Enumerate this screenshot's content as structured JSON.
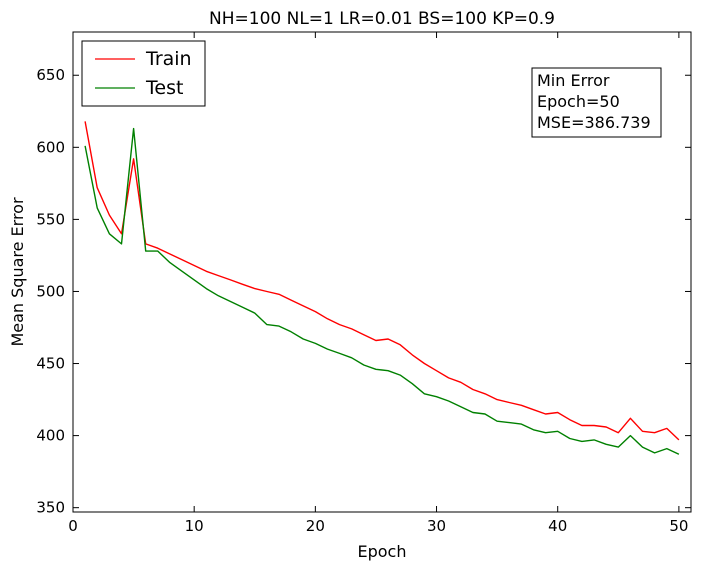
{
  "chart_data": {
    "type": "line",
    "title": "NH=100 NL=1 LR=0.01 BS=100 KP=0.9",
    "xlabel": "Epoch",
    "ylabel": "Mean Square Error",
    "xlim": [
      0,
      51
    ],
    "ylim": [
      347,
      680
    ],
    "xticks": [
      0,
      10,
      20,
      30,
      40,
      50
    ],
    "yticks": [
      350,
      400,
      450,
      500,
      550,
      600,
      650
    ],
    "grid": false,
    "legend_position": "top-left",
    "x": [
      1,
      2,
      3,
      4,
      5,
      6,
      7,
      8,
      9,
      10,
      11,
      12,
      13,
      14,
      15,
      16,
      17,
      18,
      19,
      20,
      21,
      22,
      23,
      24,
      25,
      26,
      27,
      28,
      29,
      30,
      31,
      32,
      33,
      34,
      35,
      36,
      37,
      38,
      39,
      40,
      41,
      42,
      43,
      44,
      45,
      46,
      47,
      48,
      49,
      50
    ],
    "series": [
      {
        "name": "Train",
        "color": "#ff0000",
        "values": [
          618,
          572,
          553,
          540,
          592,
          533,
          530,
          526,
          522,
          518,
          514,
          511,
          508,
          505,
          502,
          500,
          498,
          494,
          490,
          486,
          481,
          477,
          474,
          470,
          466,
          467,
          463,
          456,
          450,
          445,
          440,
          437,
          432,
          429,
          425,
          423,
          421,
          418,
          415,
          416,
          411,
          407,
          407,
          406,
          402,
          412,
          403,
          402,
          405,
          397
        ]
      },
      {
        "name": "Test",
        "color": "#008000",
        "values": [
          601,
          558,
          540,
          533,
          613,
          528,
          528,
          520,
          514,
          508,
          502,
          497,
          493,
          489,
          485,
          477,
          476,
          472,
          467,
          464,
          460,
          457,
          454,
          449,
          446,
          445,
          442,
          436,
          429,
          427,
          424,
          420,
          416,
          415,
          410,
          409,
          408,
          404,
          402,
          403,
          398,
          396,
          397,
          394,
          392,
          400,
          392,
          388,
          391,
          387
        ]
      }
    ],
    "annotation": {
      "lines": [
        "Min Error",
        "Epoch=50",
        "MSE=386.739"
      ]
    }
  }
}
